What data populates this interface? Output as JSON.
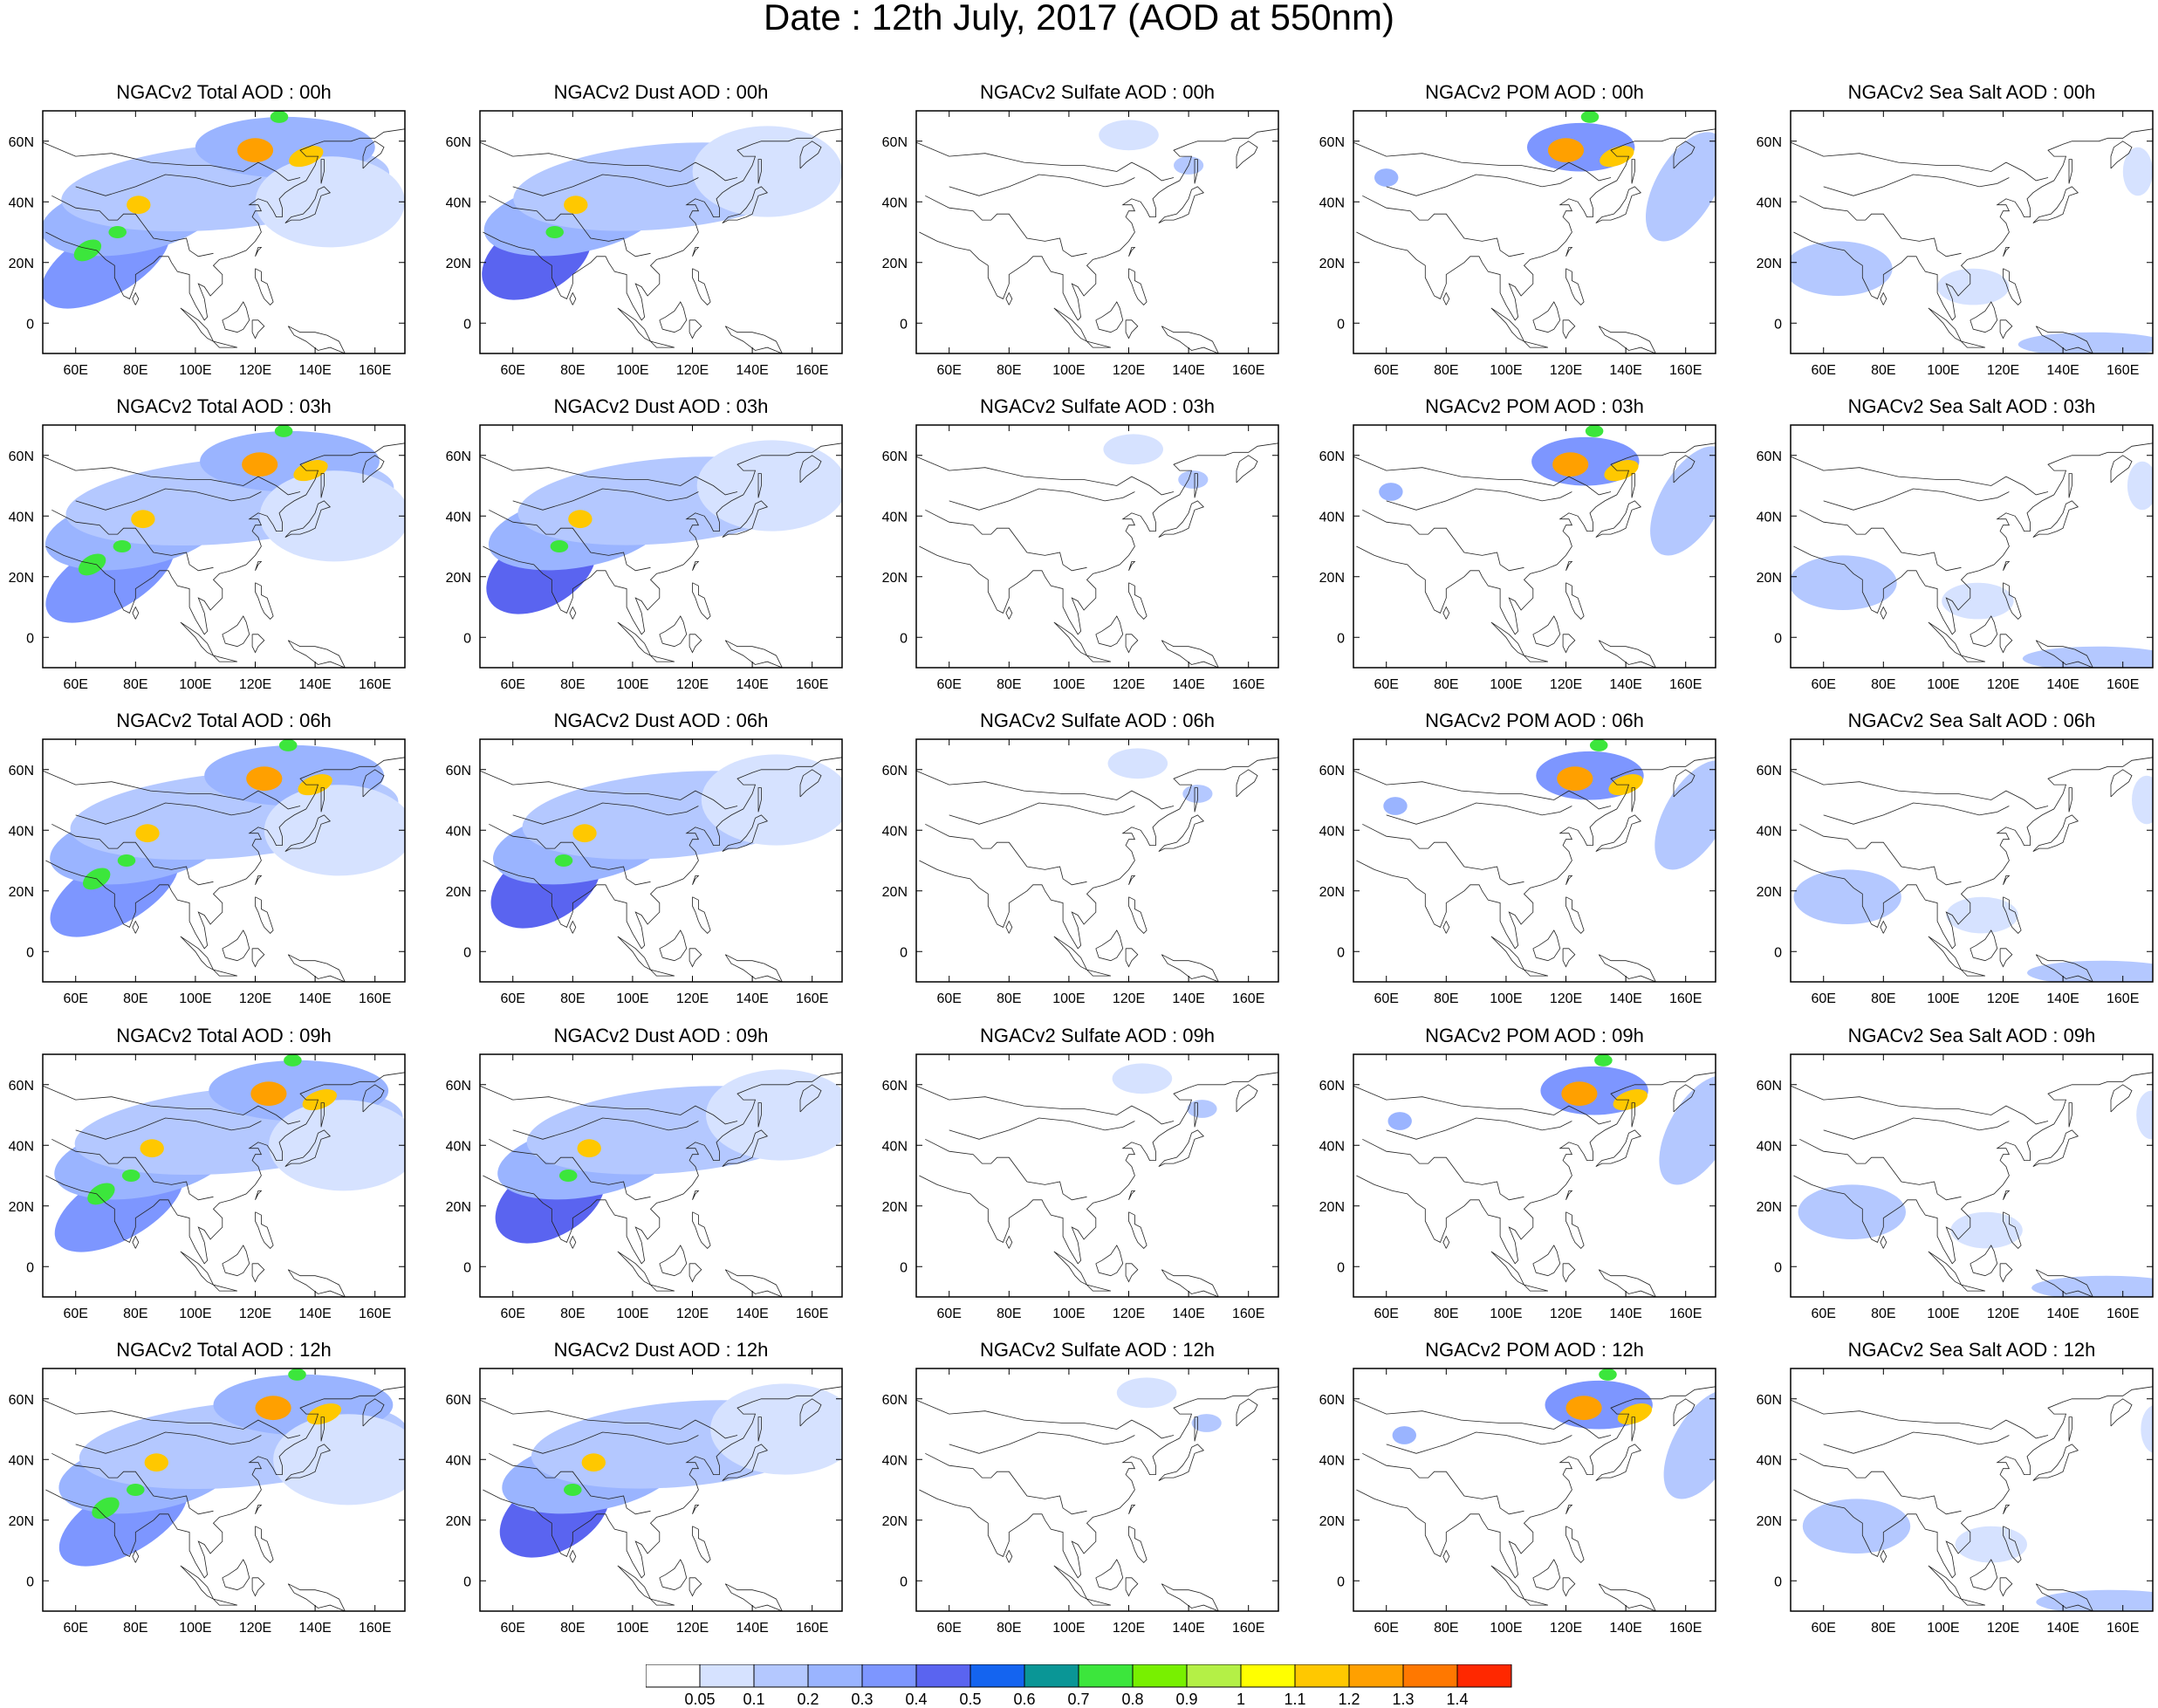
{
  "title": "Date : 12th July, 2017 (AOD at 550nm)",
  "columns": [
    "total",
    "dust",
    "sulfate",
    "pom",
    "seasalt"
  ],
  "rows": [
    "00h",
    "03h",
    "06h",
    "09h",
    "12h"
  ],
  "panel_titles": [
    [
      "NGACv2 Total AOD : 00h",
      "NGACv2 Dust AOD : 00h",
      "NGACv2 Sulfate AOD : 00h",
      "NGACv2 POM AOD : 00h",
      "NGACv2 Sea Salt AOD : 00h"
    ],
    [
      "NGACv2 Total AOD : 03h",
      "NGACv2 Dust AOD : 03h",
      "NGACv2 Sulfate AOD : 03h",
      "NGACv2 POM AOD : 03h",
      "NGACv2 Sea Salt AOD : 03h"
    ],
    [
      "NGACv2 Total AOD : 06h",
      "NGACv2 Dust AOD : 06h",
      "NGACv2 Sulfate AOD : 06h",
      "NGACv2 POM AOD : 06h",
      "NGACv2 Sea Salt AOD : 06h"
    ],
    [
      "NGACv2 Total AOD : 09h",
      "NGACv2 Dust AOD : 09h",
      "NGACv2 Sulfate AOD : 09h",
      "NGACv2 POM AOD : 09h",
      "NGACv2 Sea Salt  AOD : 09h"
    ],
    [
      "NGACv2 Total AOD  : 12h",
      "NGACv2 Dust AOD : 12h",
      "NGACv2 Sulfate AOD : 12h",
      "NGACv2 POM  AOD : 12h",
      "NGACv2 Sea Salt  AOD : 12h"
    ]
  ],
  "map": {
    "lon_range": [
      49,
      170
    ],
    "lat_range": [
      -10,
      70
    ],
    "lon_ticks": [
      60,
      80,
      100,
      120,
      140,
      160
    ],
    "lon_tick_labels": [
      "60E",
      "80E",
      "100E",
      "120E",
      "140E",
      "160E"
    ],
    "lat_ticks": [
      0,
      20,
      40,
      60
    ],
    "lat_tick_labels": [
      "0",
      "20N",
      "40N",
      "60N"
    ]
  },
  "colorbar": {
    "labels": [
      "0.05",
      "0.1",
      "0.2",
      "0.3",
      "0.4",
      "0.5",
      "0.6",
      "0.7",
      "0.8",
      "0.9",
      "1",
      "1.1",
      "1.2",
      "1.3",
      "1.4"
    ],
    "colors": [
      "#ffffff",
      "#d6e2ff",
      "#b4c8ff",
      "#9ab4ff",
      "#7d96ff",
      "#5a64f0",
      "#1464f0",
      "#0a9696",
      "#3ce63c",
      "#78f000",
      "#b4f046",
      "#ffff00",
      "#ffc800",
      "#ffa000",
      "#ff7800",
      "#ff2800"
    ]
  },
  "plumes": {
    "total": [
      {
        "lon": 70,
        "lat": 20,
        "rx": 24,
        "ry": 11,
        "level": 4,
        "rot": -30
      },
      {
        "lon": 78,
        "lat": 35,
        "rx": 30,
        "ry": 12,
        "level": 3,
        "rot": -10
      },
      {
        "lon": 110,
        "lat": 45,
        "rx": 55,
        "ry": 14,
        "level": 2,
        "rot": -5
      },
      {
        "lon": 130,
        "lat": 58,
        "rx": 30,
        "ry": 10,
        "level": 3,
        "rot": 0
      },
      {
        "lon": 145,
        "lat": 40,
        "rx": 25,
        "ry": 15,
        "level": 1,
        "rot": 0
      },
      {
        "lon": 120,
        "lat": 57,
        "rx": 6,
        "ry": 4,
        "level": 13,
        "rot": 0
      },
      {
        "lon": 137,
        "lat": 55,
        "rx": 6,
        "ry": 3,
        "level": 12,
        "rot": -20
      },
      {
        "lon": 81,
        "lat": 39,
        "rx": 4,
        "ry": 3,
        "level": 12,
        "rot": 0
      },
      {
        "lon": 64,
        "lat": 24,
        "rx": 5,
        "ry": 3,
        "level": 8,
        "rot": -30
      },
      {
        "lon": 74,
        "lat": 30,
        "rx": 3,
        "ry": 2,
        "level": 8,
        "rot": 0
      },
      {
        "lon": 128,
        "lat": 68,
        "rx": 3,
        "ry": 2,
        "level": 8,
        "rot": 0
      }
    ],
    "dust": [
      {
        "lon": 68,
        "lat": 22,
        "rx": 20,
        "ry": 12,
        "level": 5,
        "rot": -30
      },
      {
        "lon": 80,
        "lat": 35,
        "rx": 30,
        "ry": 12,
        "level": 3,
        "rot": -10
      },
      {
        "lon": 110,
        "lat": 45,
        "rx": 50,
        "ry": 14,
        "level": 2,
        "rot": -5
      },
      {
        "lon": 145,
        "lat": 50,
        "rx": 25,
        "ry": 15,
        "level": 1,
        "rot": 0
      },
      {
        "lon": 81,
        "lat": 39,
        "rx": 4,
        "ry": 3,
        "level": 12,
        "rot": 0
      },
      {
        "lon": 74,
        "lat": 30,
        "rx": 3,
        "ry": 2,
        "level": 8,
        "rot": 0
      }
    ],
    "sulfate": [
      {
        "lon": 120,
        "lat": 62,
        "rx": 10,
        "ry": 5,
        "level": 1,
        "rot": 0
      },
      {
        "lon": 140,
        "lat": 52,
        "rx": 5,
        "ry": 3,
        "level": 2,
        "rot": 0
      }
    ],
    "pom": [
      {
        "lon": 125,
        "lat": 58,
        "rx": 18,
        "ry": 8,
        "level": 4,
        "rot": 0
      },
      {
        "lon": 160,
        "lat": 45,
        "rx": 10,
        "ry": 20,
        "level": 2,
        "rot": 30
      },
      {
        "lon": 60,
        "lat": 48,
        "rx": 4,
        "ry": 3,
        "level": 3,
        "rot": 0
      },
      {
        "lon": 120,
        "lat": 57,
        "rx": 6,
        "ry": 4,
        "level": 13,
        "rot": 0
      },
      {
        "lon": 137,
        "lat": 55,
        "rx": 6,
        "ry": 3,
        "level": 12,
        "rot": -20
      },
      {
        "lon": 128,
        "lat": 68,
        "rx": 3,
        "ry": 2,
        "level": 8,
        "rot": 0
      }
    ],
    "seasalt": [
      {
        "lon": 65,
        "lat": 18,
        "rx": 18,
        "ry": 9,
        "level": 2,
        "rot": 0
      },
      {
        "lon": 110,
        "lat": 12,
        "rx": 12,
        "ry": 6,
        "level": 1,
        "rot": 0
      },
      {
        "lon": 150,
        "lat": -7,
        "rx": 25,
        "ry": 4,
        "level": 2,
        "rot": 0
      },
      {
        "lon": 165,
        "lat": 50,
        "rx": 5,
        "ry": 8,
        "level": 1,
        "rot": 0
      }
    ]
  }
}
